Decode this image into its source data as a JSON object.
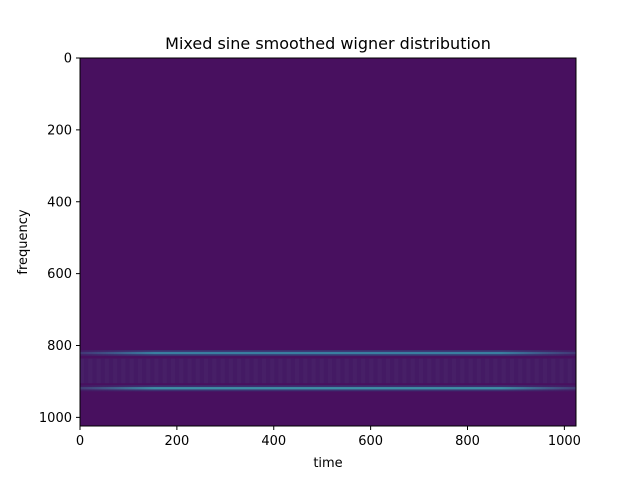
{
  "chart_data": {
    "type": "heatmap",
    "title": "Mixed sine smoothed wigner distribution",
    "xlabel": "time",
    "ylabel": "frequency",
    "xlim": [
      0,
      1024
    ],
    "ylim": [
      1024,
      0
    ],
    "y_axis_inverted": true,
    "grid": false,
    "colormap": "viridis",
    "background_color": "#48105f",
    "xticks": [
      0,
      200,
      400,
      600,
      800,
      1000
    ],
    "yticks": [
      0,
      200,
      400,
      600,
      800,
      1000
    ],
    "bands": [
      {
        "frequency": 821,
        "time_range": [
          0,
          1024
        ],
        "peak_intensity": 0.45,
        "color": "#3a7ea0"
      },
      {
        "frequency": 919,
        "time_range": [
          0,
          1024
        ],
        "peak_intensity": 0.55,
        "color": "#3f8fa5"
      }
    ],
    "interference_region": {
      "frequency_range": [
        836,
        905
      ],
      "color": "#441a64"
    }
  }
}
